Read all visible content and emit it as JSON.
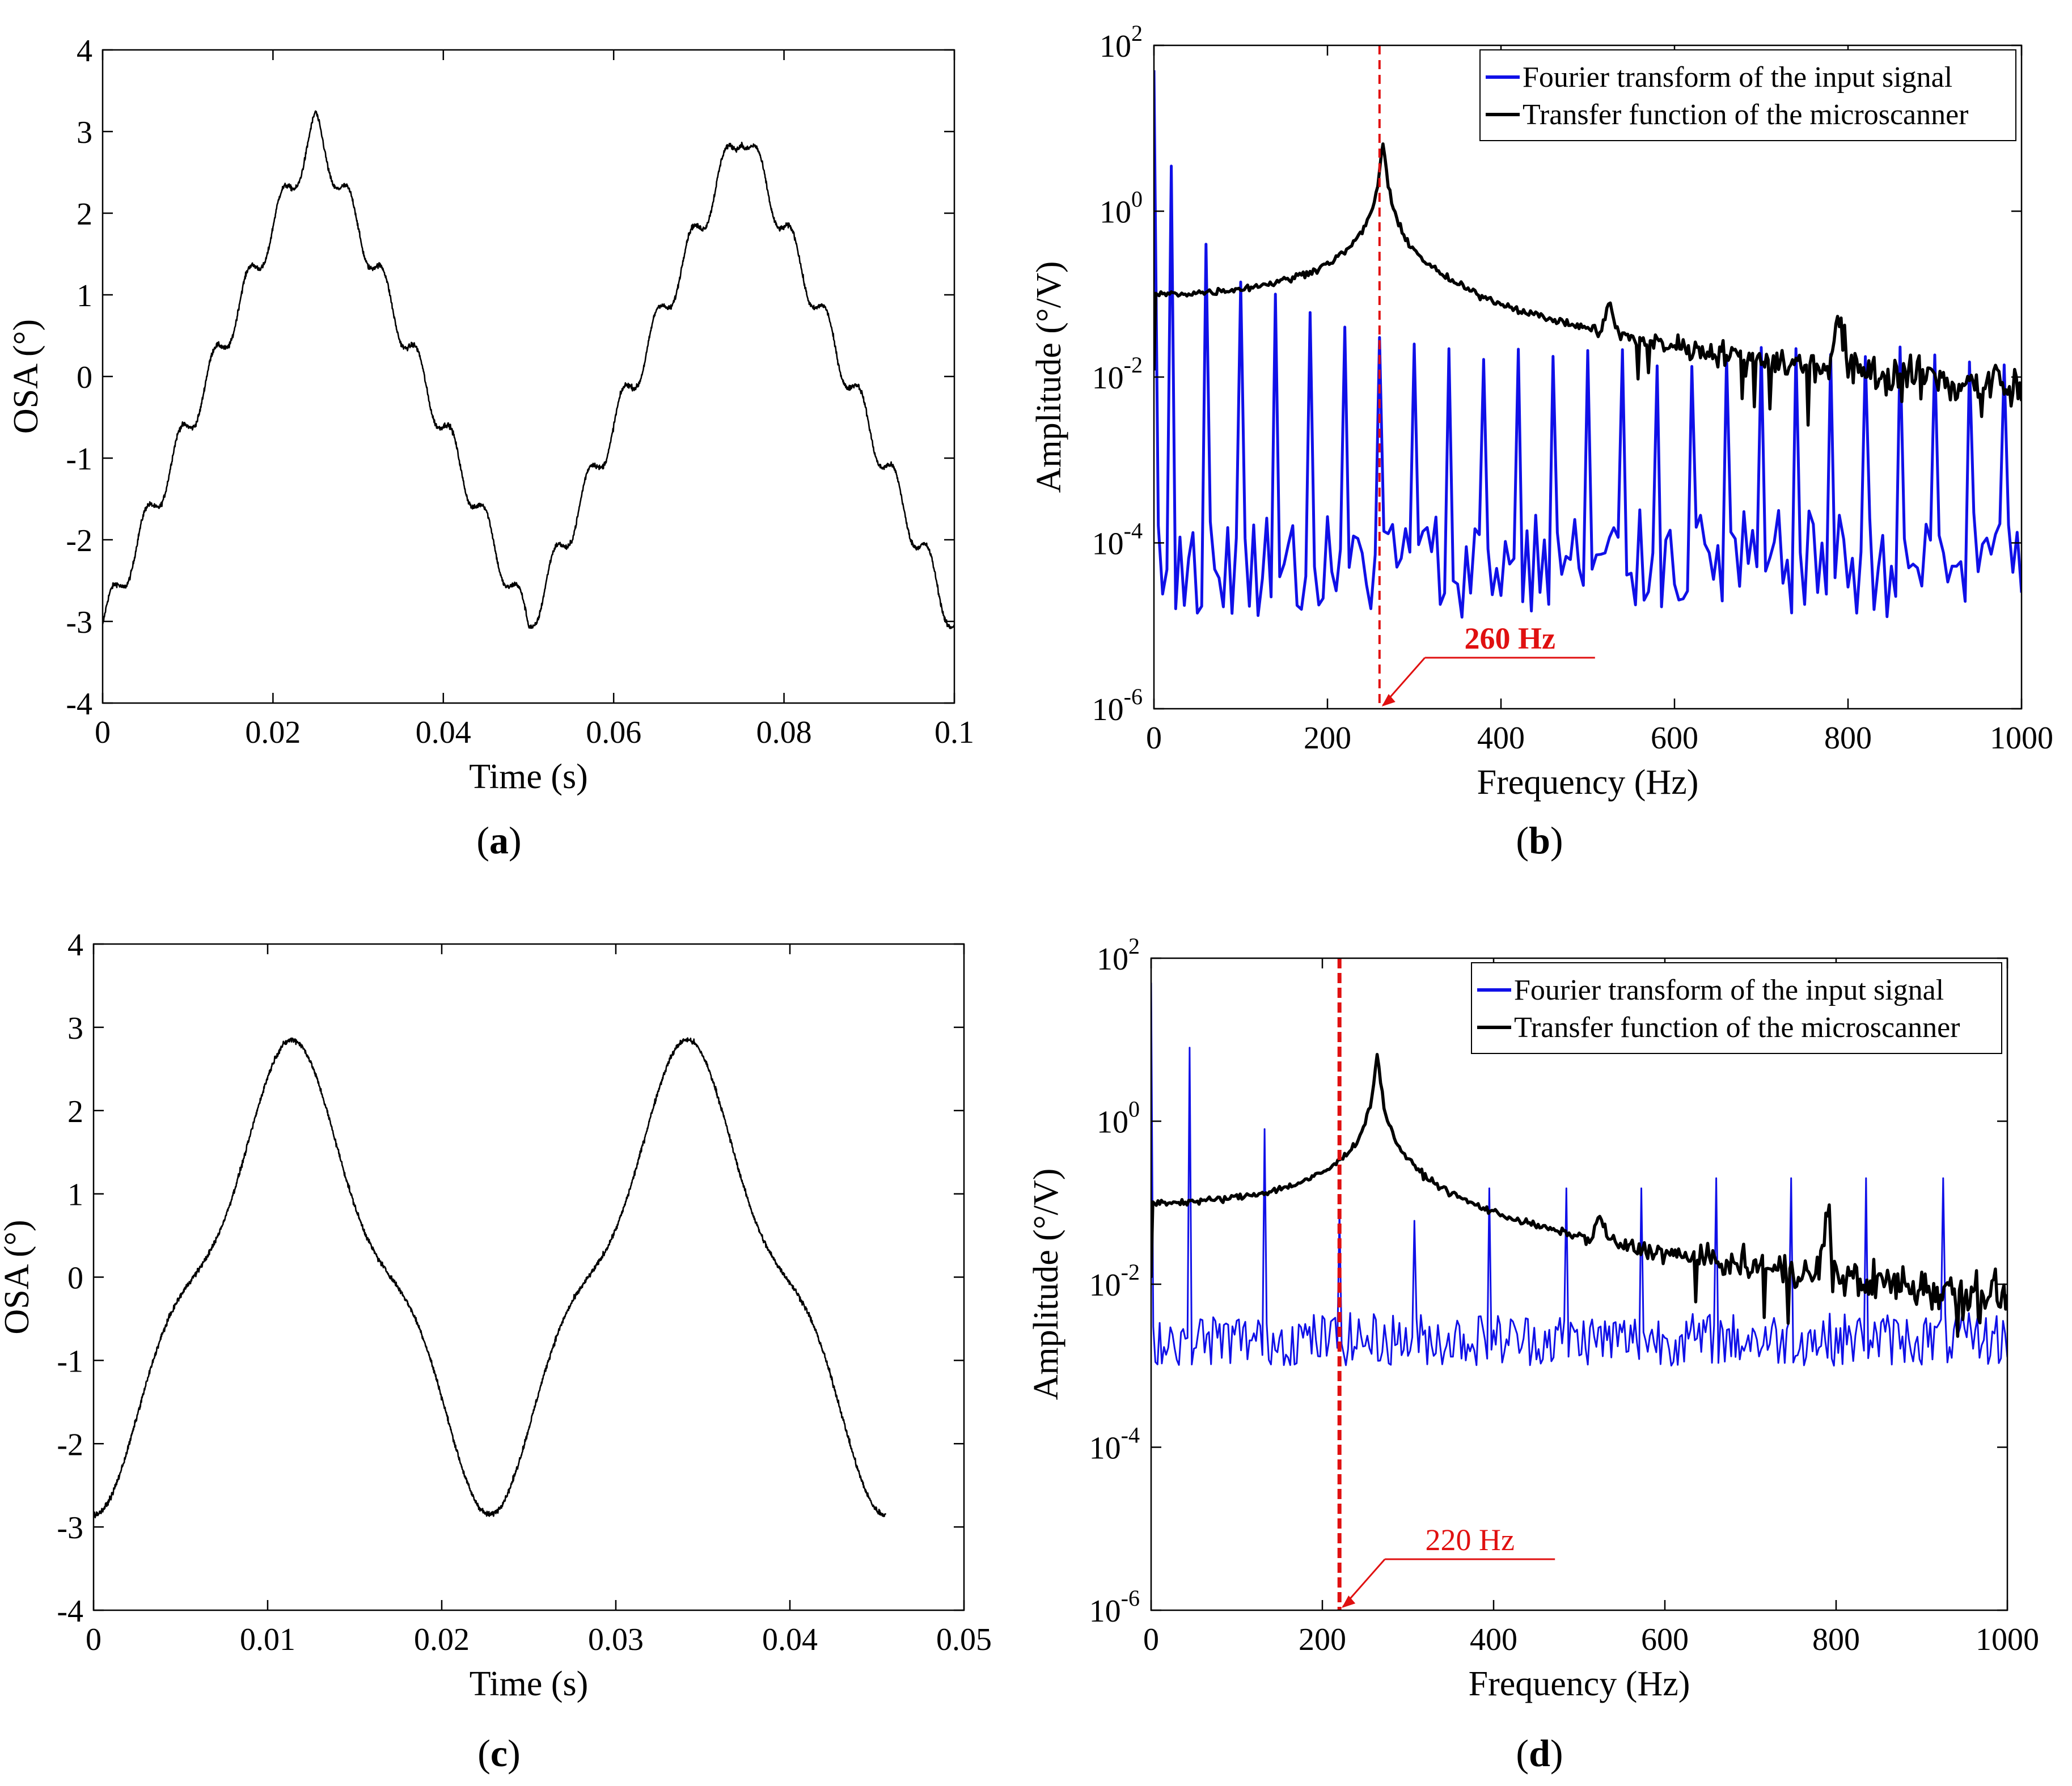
{
  "chart_data": [
    {
      "id": "a",
      "type": "line",
      "caption": "a",
      "xlabel": "Time (s)",
      "ylabel": "OSA (°)",
      "xlim": [
        0,
        0.1
      ],
      "ylim": [
        -4,
        4
      ],
      "xticks": [
        "0",
        "0.02",
        "0.04",
        "0.06",
        "0.08",
        "0.1"
      ],
      "xtick_values": [
        0,
        0.02,
        0.04,
        0.06,
        0.08,
        0.1
      ],
      "yticks": [
        "-4",
        "-3",
        "-2",
        "-1",
        "0",
        "1",
        "2",
        "3",
        "4"
      ],
      "ytick_values": [
        -4,
        -3,
        -2,
        -1,
        0,
        1,
        2,
        3,
        4
      ],
      "series": [
        {
          "name": "OSA",
          "color": "#000000",
          "signal": {
            "kind": "triangle_ripple",
            "period": 0.05,
            "peak_time": 0.025,
            "amplitude": 3.05,
            "ripple_amplitude": 0.2,
            "ripple_cycles_per_period": 12.5,
            "noise": 0.03,
            "t_end": 0.1
          }
        }
      ]
    },
    {
      "id": "b",
      "type": "line",
      "caption": "b",
      "xlabel": "Frequency (Hz)",
      "ylabel": "Amplitude (°/V)",
      "yscale": "log",
      "xlim": [
        0,
        1000
      ],
      "ylim": [
        1e-06,
        100
      ],
      "xticks": [
        "0",
        "200",
        "400",
        "600",
        "800",
        "1000"
      ],
      "xtick_values": [
        0,
        200,
        400,
        600,
        800,
        1000
      ],
      "yticks": [
        {
          "base": "10",
          "exp": "-6",
          "value": 1e-06
        },
        {
          "base": "10",
          "exp": "-4",
          "value": 0.0001
        },
        {
          "base": "10",
          "exp": "-2",
          "value": 0.01
        },
        {
          "base": "10",
          "exp": "0",
          "value": 1
        },
        {
          "base": "10",
          "exp": "2",
          "value": 100
        }
      ],
      "legend_position": "top-right",
      "series": [
        {
          "name": "Fourier transform of the input signal",
          "color": "#1010e8",
          "signal": {
            "kind": "harmonic_spectrum",
            "fundamental": 20,
            "odd_only": true,
            "peaks": [
              [
                0,
                50
              ],
              [
                20,
                3.5
              ],
              [
                60,
                0.4
              ],
              [
                100,
                0.14
              ],
              [
                140,
                0.1
              ],
              [
                180,
                0.06
              ],
              [
                220,
                0.04
              ],
              [
                260,
                0.03
              ],
              [
                300,
                0.025
              ]
            ],
            "tail_peak": 0.018,
            "floor_log_min": -4.9,
            "floor_log_max": -3.6,
            "bin_hz": 5
          }
        },
        {
          "name": "Transfer function of the microscanner",
          "color": "#000000",
          "signal": {
            "kind": "resonance",
            "f0": 264,
            "q_peak": 7,
            "dc": 0.1,
            "rolloff_to": 0.012,
            "noise_start": 500,
            "bumps": [
              [
                525,
                0.035
              ],
              [
                790,
                0.045
              ]
            ]
          }
        }
      ],
      "marker_line": {
        "x": 260,
        "color": "#e01010"
      },
      "annotation": {
        "text": "260 Hz",
        "bold": true,
        "points_to_x": 260
      }
    },
    {
      "id": "c",
      "type": "line",
      "caption": "c",
      "xlabel": "Time (s)",
      "ylabel": "OSA (°)",
      "xlim": [
        0,
        0.05
      ],
      "ylim": [
        -4,
        4
      ],
      "xticks": [
        "0",
        "0.01",
        "0.02",
        "0.03",
        "0.04",
        "0.05"
      ],
      "xtick_values": [
        0,
        0.01,
        0.02,
        0.03,
        0.04,
        0.05
      ],
      "yticks": [
        "-4",
        "-3",
        "-2",
        "-1",
        "0",
        "1",
        "2",
        "3",
        "4"
      ],
      "ytick_values": [
        -4,
        -3,
        -2,
        -1,
        0,
        1,
        2,
        3,
        4
      ],
      "series": [
        {
          "name": "OSA",
          "color": "#000000",
          "signal": {
            "kind": "stepped_sine",
            "period": 0.0227,
            "peak_time": 0.0114,
            "fundamental_amp": 2.4,
            "third_amp": 0.45,
            "noise": 0.03,
            "t_end": 0.0455
          }
        }
      ]
    },
    {
      "id": "d",
      "type": "line",
      "caption": "d",
      "xlabel": "Frequency (Hz)",
      "ylabel": "Amplitude (°/V)",
      "yscale": "log",
      "xlim": [
        0,
        1000
      ],
      "ylim": [
        1e-06,
        100
      ],
      "xticks": [
        "0",
        "200",
        "400",
        "600",
        "800",
        "1000"
      ],
      "xtick_values": [
        0,
        200,
        400,
        600,
        800,
        1000
      ],
      "yticks": [
        {
          "base": "10",
          "exp": "-6",
          "value": 1e-06
        },
        {
          "base": "10",
          "exp": "-4",
          "value": 0.0001
        },
        {
          "base": "10",
          "exp": "-2",
          "value": 0.01
        },
        {
          "base": "10",
          "exp": "0",
          "value": 1
        },
        {
          "base": "10",
          "exp": "2",
          "value": 100
        }
      ],
      "legend_position": "top-right",
      "series": [
        {
          "name": "Fourier transform of the input signal",
          "color": "#1010e8",
          "signal": {
            "kind": "harmonic_spectrum",
            "fundamental": 44,
            "odd_only": true,
            "peaks": [
              [
                0,
                50
              ],
              [
                44,
                8
              ],
              [
                132,
                0.8
              ],
              [
                220,
                0.08
              ],
              [
                308,
                0.06
              ],
              [
                396,
                0.15
              ],
              [
                484,
                0.15
              ],
              [
                572,
                0.15
              ],
              [
                660,
                0.2
              ],
              [
                748,
                0.2
              ],
              [
                836,
                0.2
              ],
              [
                924,
                0.2
              ]
            ],
            "tail_peak": 0.15,
            "floor_log_min": -3.0,
            "floor_log_max": -2.35,
            "bin_hz": 2.5
          }
        },
        {
          "name": "Transfer function of the microscanner",
          "color": "#000000",
          "signal": {
            "kind": "resonance",
            "f0": 264,
            "q_peak": 7,
            "dc": 0.1,
            "rolloff_to": 0.012,
            "noise_start": 500,
            "bumps": [
              [
                525,
                0.035
              ],
              [
                790,
                0.045
              ]
            ]
          }
        }
      ],
      "marker_line": {
        "x": 220,
        "color": "#e01010"
      },
      "annotation": {
        "text": "220 Hz",
        "bold": false,
        "points_to_x": 220
      }
    }
  ]
}
